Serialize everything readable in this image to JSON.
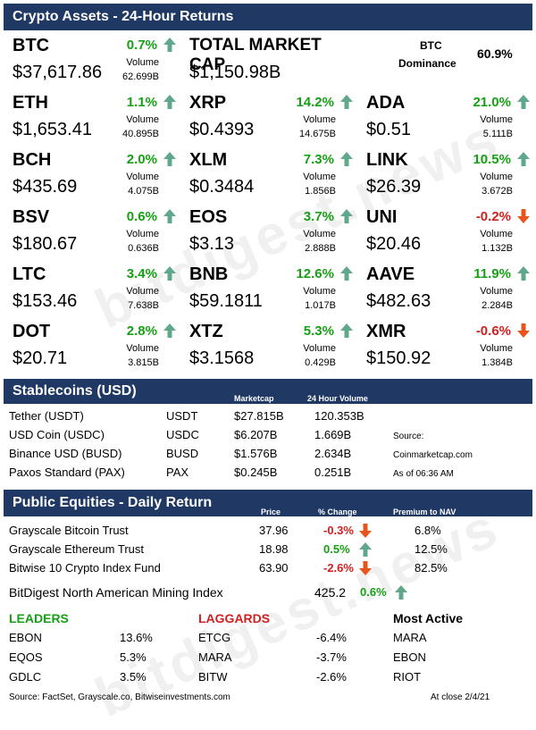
{
  "title": "Crypto Assets - 24-Hour Returns",
  "total_market_cap": {
    "label": "TOTAL MARKET CAP",
    "value": "$1,150.98B"
  },
  "btc_dominance": {
    "label_line1": "BTC",
    "label_line2": "Dominance",
    "value": "60.9%"
  },
  "volume_label": "Volume",
  "assets": [
    {
      "symbol": "BTC",
      "price": "$37,617.86",
      "change": "0.7%",
      "volume": "62.699B",
      "direction": "up"
    },
    {
      "symbol": "ETH",
      "price": "$1,653.41",
      "change": "1.1%",
      "volume": "40.895B",
      "direction": "up"
    },
    {
      "symbol": "XRP",
      "price": "$0.4393",
      "change": "14.2%",
      "volume": "14.675B",
      "direction": "up"
    },
    {
      "symbol": "ADA",
      "price": "$0.51",
      "change": "21.0%",
      "volume": "5.111B",
      "direction": "up"
    },
    {
      "symbol": "BCH",
      "price": "$435.69",
      "change": "2.0%",
      "volume": "4.075B",
      "direction": "up"
    },
    {
      "symbol": "XLM",
      "price": "$0.3484",
      "change": "7.3%",
      "volume": "1.856B",
      "direction": "up"
    },
    {
      "symbol": "LINK",
      "price": "$26.39",
      "change": "10.5%",
      "volume": "3.672B",
      "direction": "up"
    },
    {
      "symbol": "BSV",
      "price": "$180.67",
      "change": "0.6%",
      "volume": "0.636B",
      "direction": "up"
    },
    {
      "symbol": "EOS",
      "price": "$3.13",
      "change": "3.7%",
      "volume": "2.888B",
      "direction": "up"
    },
    {
      "symbol": "UNI",
      "price": "$20.46",
      "change": "-0.2%",
      "volume": "1.132B",
      "direction": "down"
    },
    {
      "symbol": "LTC",
      "price": "$153.46",
      "change": "3.4%",
      "volume": "7.638B",
      "direction": "up"
    },
    {
      "symbol": "BNB",
      "price": "$59.1811",
      "change": "12.6%",
      "volume": "1.017B",
      "direction": "up"
    },
    {
      "symbol": "AAVE",
      "price": "$482.63",
      "change": "11.9%",
      "volume": "2.284B",
      "direction": "up"
    },
    {
      "symbol": "DOT",
      "price": "$20.71",
      "change": "2.8%",
      "volume": "3.815B",
      "direction": "up"
    },
    {
      "symbol": "XTZ",
      "price": "$3.1568",
      "change": "5.3%",
      "volume": "0.429B",
      "direction": "up"
    },
    {
      "symbol": "XMR",
      "price": "$150.92",
      "change": "-0.6%",
      "volume": "1.384B",
      "direction": "down"
    }
  ],
  "stablecoins": {
    "title": "Stablecoins (USD)",
    "col_marketcap": "Marketcap",
    "col_volume": "24 Hour Volume",
    "rows": [
      {
        "name": "Tether (USDT)",
        "ticker": "USDT",
        "marketcap": "$27.815B",
        "volume": "120.353B"
      },
      {
        "name": "USD Coin (USDC)",
        "ticker": "USDC",
        "marketcap": "$6.207B",
        "volume": "1.669B"
      },
      {
        "name": "Binance USD (BUSD)",
        "ticker": "BUSD",
        "marketcap": "$1.576B",
        "volume": "2.634B"
      },
      {
        "name": "Paxos Standard (PAX)",
        "ticker": "PAX",
        "marketcap": "$0.245B",
        "volume": "0.251B"
      }
    ],
    "source_label": "Source:",
    "source": "Coinmarketcap.com",
    "as_of": "As of 06:36 AM"
  },
  "equities": {
    "title": "Public Equities - Daily Return",
    "col_price": "Price",
    "col_change": "% Change",
    "col_premium": "Premium to NAV",
    "rows": [
      {
        "name": "Grayscale Bitcoin Trust",
        "price": "37.96",
        "change": "-0.3%",
        "direction": "down",
        "premium": "6.8%"
      },
      {
        "name": "Grayscale Ethereum Trust",
        "price": "18.98",
        "change": "0.5%",
        "direction": "up",
        "premium": "12.5%"
      },
      {
        "name": "Bitwise 10 Crypto Index Fund",
        "price": "63.90",
        "change": "-2.6%",
        "direction": "down",
        "premium": "82.5%"
      }
    ],
    "mining": {
      "name": "BitDigest North American Mining Index",
      "value": "425.2",
      "change": "0.6%",
      "direction": "up"
    }
  },
  "leaders": {
    "title": "LEADERS",
    "rows": [
      {
        "ticker": "EBON",
        "value": "13.6%"
      },
      {
        "ticker": "EQOS",
        "value": "5.3%"
      },
      {
        "ticker": "GDLC",
        "value": "3.5%"
      }
    ]
  },
  "laggards": {
    "title": "LAGGARDS",
    "rows": [
      {
        "ticker": "ETCG",
        "value": "-6.4%"
      },
      {
        "ticker": "MARA",
        "value": "-3.7%"
      },
      {
        "ticker": "BITW",
        "value": "-2.6%"
      }
    ]
  },
  "most_active": {
    "title": "Most Active",
    "rows": [
      "MARA",
      "EBON",
      "RIOT"
    ]
  },
  "footer": {
    "sources": "Source: FactSet, Grayscale.co, Bitwiseinvestments.com",
    "close": "At close 2/4/21"
  },
  "watermark": "bitdigest.news",
  "colors": {
    "navy": "#1f3864",
    "green": "#16a015",
    "red": "#d21f1f",
    "arrow_green": "#5fa88c",
    "arrow_red": "#e8541c"
  }
}
